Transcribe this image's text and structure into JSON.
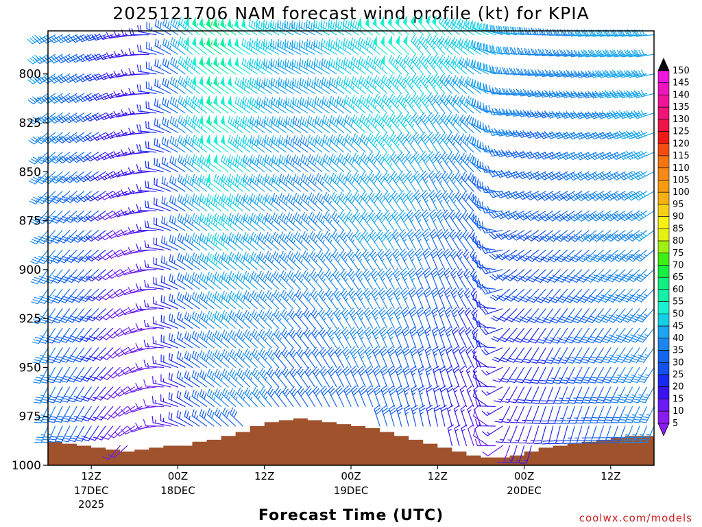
{
  "chart_data": {
    "type": "wind-profile",
    "title": "2025121706 NAM forecast wind profile (kt) for KPIA",
    "xlabel": "Forecast Time (UTC)",
    "ylabel": "",
    "credit": "coolwx.com/models",
    "units": "kt",
    "y_ticks": [
      800,
      825,
      850,
      875,
      900,
      925,
      950,
      975,
      1000
    ],
    "y_tick_labels": [
      "800",
      "825",
      "850",
      "875",
      "900",
      "925",
      "950",
      "975",
      "1000"
    ],
    "ylim": [
      778,
      1000
    ],
    "x_ticks": [
      {
        "hour": 6,
        "label": "12Z",
        "date": "17DEC",
        "year": "2025"
      },
      {
        "hour": 18,
        "label": "00Z",
        "date": "18DEC",
        "year": ""
      },
      {
        "hour": 30,
        "label": "12Z",
        "date": "",
        "year": ""
      },
      {
        "hour": 42,
        "label": "00Z",
        "date": "19DEC",
        "year": ""
      },
      {
        "hour": 54,
        "label": "12Z",
        "date": "",
        "year": ""
      },
      {
        "hour": 66,
        "label": "00Z",
        "date": "20DEC",
        "year": ""
      },
      {
        "hour": 78,
        "label": "12Z",
        "date": "",
        "year": ""
      }
    ],
    "xlim": [
      0,
      84
    ],
    "colorbar": {
      "values": [
        5,
        10,
        15,
        20,
        25,
        30,
        35,
        40,
        45,
        50,
        55,
        60,
        65,
        70,
        75,
        80,
        85,
        90,
        95,
        100,
        105,
        110,
        115,
        120,
        125,
        130,
        135,
        140,
        145,
        150
      ],
      "colors": [
        "#8a1cf0",
        "#6a1cf2",
        "#3a14f0",
        "#1a2af2",
        "#1450ee",
        "#1466ee",
        "#1a86ee",
        "#1aa6f0",
        "#14d0e6",
        "#1aefd0",
        "#14f0a6",
        "#10f080",
        "#14f040",
        "#3cf014",
        "#a0f014",
        "#e6f014",
        "#f6f014",
        "#f6d014",
        "#f6b014",
        "#f69a10",
        "#f68a14",
        "#f67410",
        "#f64c10",
        "#f01a14",
        "#f01446",
        "#f01478",
        "#f0149a",
        "#f014c0",
        "#f014e0",
        "#e614f6"
      ],
      "top_color": "#000000",
      "bottom_color": "#8a1cf0"
    },
    "terrain": {
      "color": "#a0522d",
      "surface_pressure": [
        {
          "hour": 0,
          "p": 988
        },
        {
          "hour": 2,
          "p": 989
        },
        {
          "hour": 4,
          "p": 990
        },
        {
          "hour": 6,
          "p": 991
        },
        {
          "hour": 8,
          "p": 992
        },
        {
          "hour": 10,
          "p": 993
        },
        {
          "hour": 12,
          "p": 992
        },
        {
          "hour": 14,
          "p": 991
        },
        {
          "hour": 16,
          "p": 990
        },
        {
          "hour": 18,
          "p": 990
        },
        {
          "hour": 20,
          "p": 988
        },
        {
          "hour": 22,
          "p": 987
        },
        {
          "hour": 24,
          "p": 985
        },
        {
          "hour": 26,
          "p": 983
        },
        {
          "hour": 28,
          "p": 980
        },
        {
          "hour": 30,
          "p": 978
        },
        {
          "hour": 32,
          "p": 977
        },
        {
          "hour": 34,
          "p": 976
        },
        {
          "hour": 36,
          "p": 977
        },
        {
          "hour": 38,
          "p": 978
        },
        {
          "hour": 40,
          "p": 979
        },
        {
          "hour": 42,
          "p": 980
        },
        {
          "hour": 44,
          "p": 981
        },
        {
          "hour": 46,
          "p": 983
        },
        {
          "hour": 48,
          "p": 985
        },
        {
          "hour": 50,
          "p": 987
        },
        {
          "hour": 52,
          "p": 989
        },
        {
          "hour": 54,
          "p": 991
        },
        {
          "hour": 56,
          "p": 993
        },
        {
          "hour": 58,
          "p": 995
        },
        {
          "hour": 60,
          "p": 996
        },
        {
          "hour": 62,
          "p": 996
        },
        {
          "hour": 64,
          "p": 995
        },
        {
          "hour": 66,
          "p": 993
        },
        {
          "hour": 68,
          "p": 991
        },
        {
          "hour": 70,
          "p": 990
        },
        {
          "hour": 72,
          "p": 989
        },
        {
          "hour": 74,
          "p": 988
        },
        {
          "hour": 76,
          "p": 987
        },
        {
          "hour": 78,
          "p": 986
        },
        {
          "hour": 80,
          "p": 985
        },
        {
          "hour": 82,
          "p": 985
        },
        {
          "hour": 84,
          "p": 984
        }
      ]
    },
    "barb_levels": [
      780,
      790,
      800,
      810,
      820,
      830,
      840,
      850,
      860,
      870,
      880,
      890,
      900,
      910,
      920,
      930,
      940,
      950,
      960,
      970,
      980,
      990
    ],
    "barb_hours": [
      0,
      1,
      2,
      3,
      4,
      5,
      6,
      7,
      8,
      9,
      10,
      11,
      12,
      13,
      14,
      15,
      16,
      17,
      18,
      19,
      20,
      21,
      22,
      23,
      24,
      25,
      26,
      27,
      28,
      29,
      30,
      31,
      32,
      33,
      34,
      35,
      36,
      37,
      38,
      39,
      40,
      41,
      42,
      43,
      44,
      45,
      46,
      47,
      48,
      49,
      50,
      51,
      52,
      53,
      54,
      55,
      56,
      57,
      58,
      59,
      60,
      61,
      62,
      63,
      64,
      65,
      66,
      67,
      68,
      69,
      70,
      71,
      72,
      73,
      74,
      75,
      76,
      77,
      78,
      79,
      80,
      81,
      82,
      83,
      84
    ],
    "wind_field": {
      "method": "piecewise-linear in forecast hour, linear in pressure (low level = 990 hPa, high level = 780 hPa)",
      "keyframes": [
        {
          "hour": 0,
          "low_dir": 200,
          "low_spd": 34,
          "high_dir": 240,
          "high_spd": 38
        },
        {
          "hour": 6,
          "low_dir": 210,
          "low_spd": 25,
          "high_dir": 245,
          "high_spd": 30
        },
        {
          "hour": 10,
          "low_dir": 220,
          "low_spd": 8,
          "high_dir": 255,
          "high_spd": 15
        },
        {
          "hour": 14,
          "low_dir": 250,
          "low_spd": 7,
          "high_dir": 270,
          "high_spd": 18
        },
        {
          "hour": 17,
          "low_dir": 280,
          "low_spd": 12,
          "high_dir": 300,
          "high_spd": 28
        },
        {
          "hour": 20,
          "low_dir": 300,
          "low_spd": 20,
          "high_dir": 310,
          "high_spd": 45
        },
        {
          "hour": 24,
          "low_dir": 310,
          "low_spd": 30,
          "high_dir": 305,
          "high_spd": 60
        },
        {
          "hour": 30,
          "low_dir": 320,
          "low_spd": 32,
          "high_dir": 300,
          "high_spd": 45
        },
        {
          "hour": 36,
          "low_dir": 330,
          "low_spd": 28,
          "high_dir": 295,
          "high_spd": 40
        },
        {
          "hour": 42,
          "low_dir": 340,
          "low_spd": 30,
          "high_dir": 300,
          "high_spd": 45
        },
        {
          "hour": 48,
          "low_dir": 345,
          "low_spd": 28,
          "high_dir": 310,
          "high_spd": 50
        },
        {
          "hour": 54,
          "low_dir": 350,
          "low_spd": 18,
          "high_dir": 320,
          "high_spd": 48
        },
        {
          "hour": 60,
          "low_dir": 340,
          "low_spd": 10,
          "high_dir": 300,
          "high_spd": 45
        },
        {
          "hour": 64,
          "low_dir": 200,
          "low_spd": 12,
          "high_dir": 280,
          "high_spd": 40
        },
        {
          "hour": 70,
          "low_dir": 190,
          "low_spd": 18,
          "high_dir": 270,
          "high_spd": 35
        },
        {
          "hour": 76,
          "low_dir": 195,
          "low_spd": 28,
          "high_dir": 265,
          "high_spd": 38
        },
        {
          "hour": 84,
          "low_dir": 200,
          "low_spd": 35,
          "high_dir": 265,
          "high_spd": 40
        }
      ]
    }
  }
}
